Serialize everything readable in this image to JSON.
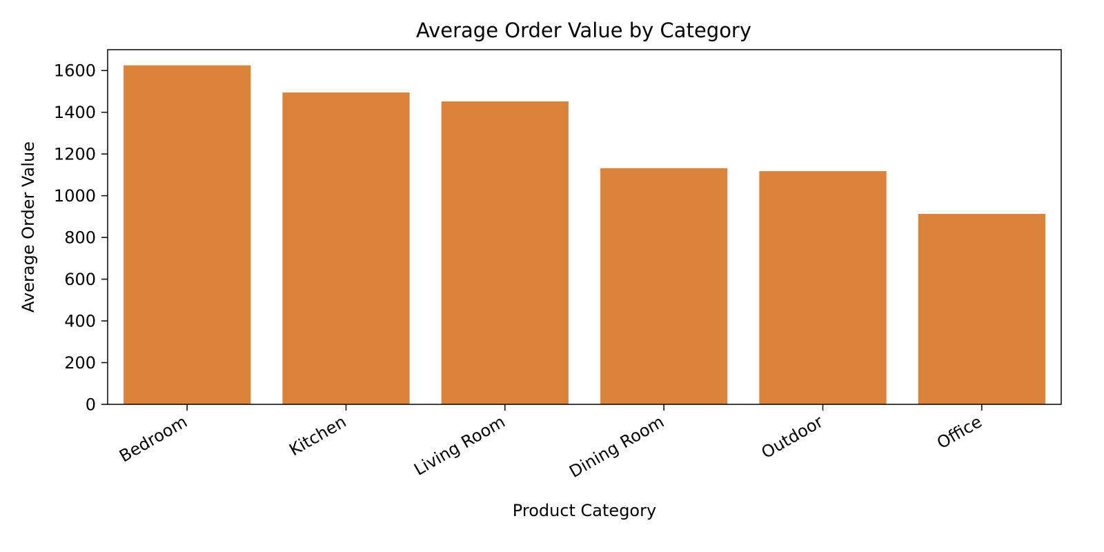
{
  "chart_data": {
    "type": "bar",
    "title": "Average Order Value by Category",
    "xlabel": "Product Category",
    "ylabel": "Average Order Value",
    "categories": [
      "Bedroom",
      "Kitchen",
      "Living Room",
      "Dining Room",
      "Outdoor",
      "Office"
    ],
    "values": [
      1625,
      1495,
      1452,
      1132,
      1118,
      913
    ],
    "ylim": [
      0,
      1700
    ],
    "yticks": [
      0,
      200,
      400,
      600,
      800,
      1000,
      1200,
      1400,
      1600
    ],
    "xtick_rotation": 30,
    "bar_color": "#d9843a",
    "grid": false,
    "legend": "none"
  }
}
